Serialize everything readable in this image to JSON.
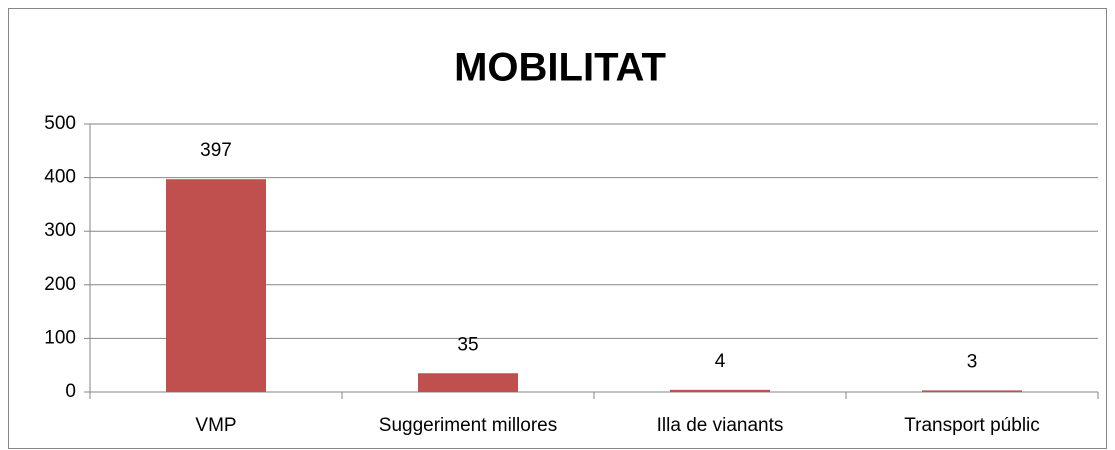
{
  "chart_data": {
    "type": "bar",
    "title": "MOBILITAT",
    "categories": [
      "VMP",
      "Suggeriment millores",
      "Illa de vianants",
      "Transport públic"
    ],
    "values": [
      397,
      35,
      4,
      3
    ],
    "color": "#c0504d",
    "ylim": [
      0,
      500
    ],
    "yticks": [
      0,
      100,
      200,
      300,
      400,
      500
    ],
    "grid": true
  }
}
